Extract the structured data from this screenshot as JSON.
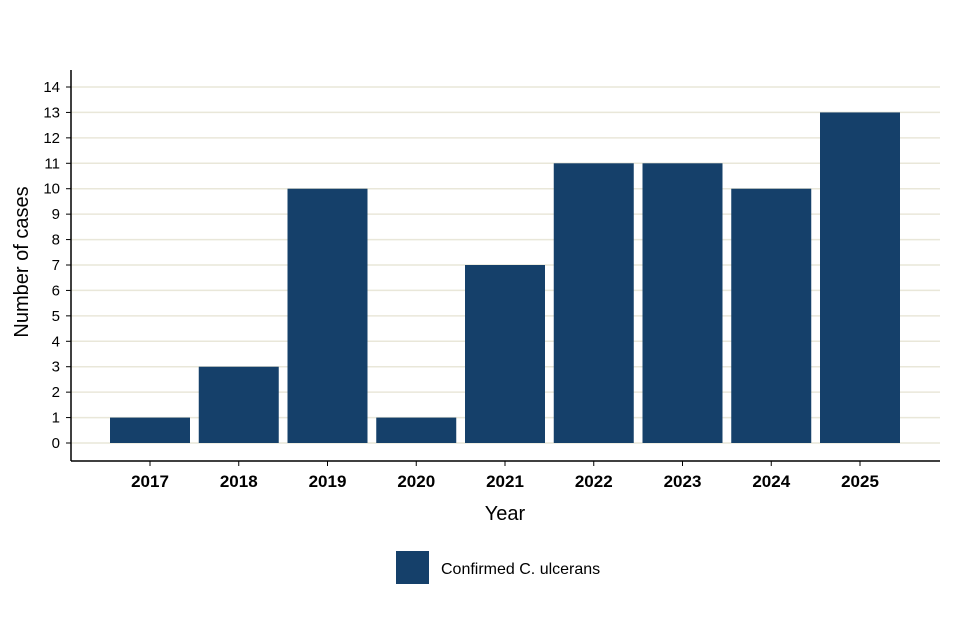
{
  "chart_data": {
    "type": "bar",
    "categories": [
      "2017",
      "2018",
      "2019",
      "2020",
      "2021",
      "2022",
      "2023",
      "2024",
      "2025"
    ],
    "series": [
      {
        "name": "Confirmed C. ulcerans",
        "values": [
          1,
          3,
          10,
          1,
          7,
          11,
          11,
          10,
          13
        ]
      }
    ],
    "xlabel": "Year",
    "ylabel": "Number of cases",
    "ylim": [
      0,
      14
    ],
    "yticks": [
      "0",
      "1",
      "2",
      "3",
      "4",
      "5",
      "6",
      "7",
      "8",
      "9",
      "10",
      "11",
      "12",
      "13",
      "14"
    ],
    "grid": "horizontal",
    "legend_position": "bottom",
    "colors": {
      "bar": "#15406a",
      "grid": "#e9e7d9",
      "axis": "#000000"
    }
  }
}
